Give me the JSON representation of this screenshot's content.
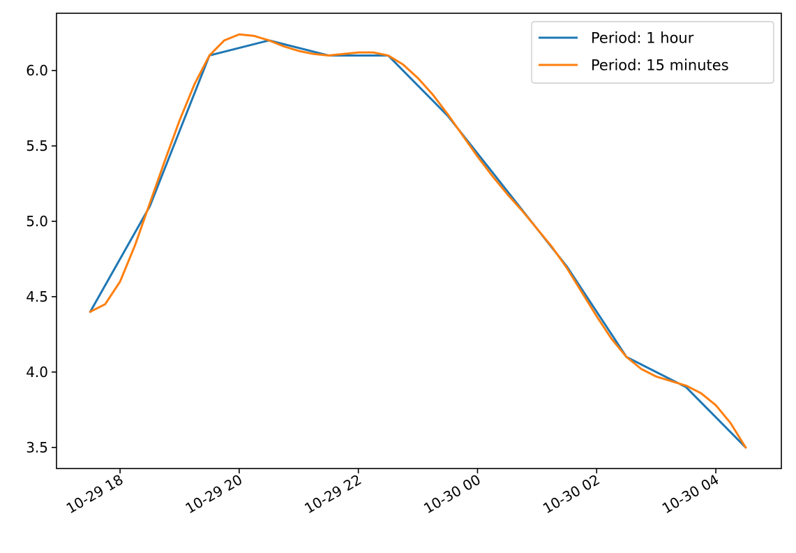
{
  "chart_data": {
    "type": "line",
    "title": "",
    "xlabel": "",
    "ylabel": "",
    "x_tick_labels": [
      "10-29 18",
      "10-29 20",
      "10-29 22",
      "10-30 00",
      "10-30 02",
      "10-30 04"
    ],
    "x_tick_times": [
      "2023-10-29T18:00",
      "2023-10-29T20:00",
      "2023-10-29T22:00",
      "2023-10-30T00:00",
      "2023-10-30T02:00",
      "2023-10-30T04:00"
    ],
    "y_tick_labels": [
      "3.5",
      "4.0",
      "4.5",
      "5.0",
      "5.5",
      "6.0"
    ],
    "y_ticks": [
      3.5,
      4.0,
      4.5,
      5.0,
      5.5,
      6.0
    ],
    "xlim": [
      "2023-10-29T16:56",
      "2023-10-30T05:06"
    ],
    "ylim": [
      3.36,
      6.38
    ],
    "grid": false,
    "legend_position": "top-right",
    "series": [
      {
        "name": "Period: 1 hour",
        "color": "#1f77b4",
        "x": [
          "2023-10-29T17:30",
          "2023-10-29T18:30",
          "2023-10-29T19:30",
          "2023-10-29T20:30",
          "2023-10-29T21:30",
          "2023-10-29T22:30",
          "2023-10-29T23:30",
          "2023-10-30T00:30",
          "2023-10-30T01:30",
          "2023-10-30T02:30",
          "2023-10-30T03:30",
          "2023-10-30T04:30"
        ],
        "y": [
          4.4,
          5.1,
          6.1,
          6.2,
          6.1,
          6.1,
          5.7,
          5.2,
          4.7,
          4.1,
          3.9,
          3.5
        ]
      },
      {
        "name": "Period: 15 minutes",
        "color": "#ff7f0e",
        "x": [
          "2023-10-29T17:30",
          "2023-10-29T17:45",
          "2023-10-29T18:00",
          "2023-10-29T18:15",
          "2023-10-29T18:30",
          "2023-10-29T18:45",
          "2023-10-29T19:00",
          "2023-10-29T19:15",
          "2023-10-29T19:30",
          "2023-10-29T19:45",
          "2023-10-29T20:00",
          "2023-10-29T20:15",
          "2023-10-29T20:30",
          "2023-10-29T20:45",
          "2023-10-29T21:00",
          "2023-10-29T21:15",
          "2023-10-29T21:30",
          "2023-10-29T21:45",
          "2023-10-29T22:00",
          "2023-10-29T22:15",
          "2023-10-29T22:30",
          "2023-10-29T22:45",
          "2023-10-29T23:00",
          "2023-10-29T23:15",
          "2023-10-29T23:30",
          "2023-10-29T23:45",
          "2023-10-30T00:00",
          "2023-10-30T00:15",
          "2023-10-30T00:30",
          "2023-10-30T00:45",
          "2023-10-30T01:00",
          "2023-10-30T01:15",
          "2023-10-30T01:30",
          "2023-10-30T01:45",
          "2023-10-30T02:00",
          "2023-10-30T02:15",
          "2023-10-30T02:30",
          "2023-10-30T02:45",
          "2023-10-30T03:00",
          "2023-10-30T03:15",
          "2023-10-30T03:30",
          "2023-10-30T03:45",
          "2023-10-30T04:00",
          "2023-10-30T04:15",
          "2023-10-30T04:30"
        ],
        "y": [
          4.4,
          4.45,
          4.6,
          4.84,
          5.12,
          5.4,
          5.67,
          5.91,
          6.1,
          6.2,
          6.24,
          6.23,
          6.2,
          6.16,
          6.13,
          6.11,
          6.1,
          6.11,
          6.12,
          6.12,
          6.1,
          6.04,
          5.95,
          5.84,
          5.71,
          5.57,
          5.43,
          5.3,
          5.18,
          5.07,
          4.95,
          4.83,
          4.69,
          4.53,
          4.37,
          4.22,
          4.1,
          4.02,
          3.97,
          3.94,
          3.91,
          3.86,
          3.78,
          3.66,
          3.5
        ]
      }
    ]
  }
}
